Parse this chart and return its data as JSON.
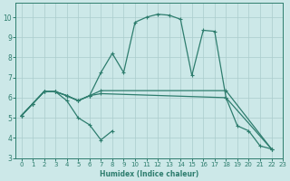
{
  "title": "",
  "xlabel": "Humidex (Indice chaleur)",
  "background_color": "#cce8e8",
  "grid_color": "#aacccc",
  "line_color": "#2e7d6e",
  "xlim": [
    -0.5,
    23
  ],
  "ylim": [
    3,
    10.7
  ],
  "xticks": [
    0,
    1,
    2,
    3,
    4,
    5,
    6,
    7,
    8,
    9,
    10,
    11,
    12,
    13,
    14,
    15,
    16,
    17,
    18,
    19,
    20,
    21,
    22,
    23
  ],
  "yticks": [
    3,
    4,
    5,
    6,
    7,
    8,
    9,
    10
  ],
  "lines": [
    {
      "x": [
        0,
        1,
        2,
        3,
        4,
        5,
        6,
        7,
        8,
        9,
        10,
        11,
        12,
        13,
        14,
        15,
        16,
        17,
        18,
        19,
        20,
        21,
        22
      ],
      "y": [
        5.1,
        5.7,
        6.3,
        6.3,
        6.1,
        5.85,
        6.1,
        7.25,
        8.2,
        7.25,
        9.75,
        10.0,
        10.15,
        10.1,
        9.9,
        7.1,
        9.35,
        9.3,
        6.0,
        4.6,
        4.35,
        3.6,
        3.45
      ]
    },
    {
      "x": [
        0,
        1,
        2,
        3,
        4,
        5,
        6,
        7,
        8
      ],
      "y": [
        5.1,
        5.7,
        6.3,
        6.3,
        5.85,
        5.0,
        4.65,
        3.9,
        4.35
      ]
    },
    {
      "x": [
        0,
        1,
        2,
        3,
        4,
        5,
        6,
        7,
        18,
        22
      ],
      "y": [
        5.1,
        5.7,
        6.3,
        6.3,
        6.1,
        5.85,
        6.1,
        6.2,
        6.0,
        3.45
      ]
    },
    {
      "x": [
        0,
        1,
        2,
        3,
        4,
        5,
        6,
        7,
        18,
        22
      ],
      "y": [
        5.1,
        5.7,
        6.3,
        6.3,
        6.1,
        5.85,
        6.1,
        6.35,
        6.35,
        3.45
      ]
    }
  ]
}
